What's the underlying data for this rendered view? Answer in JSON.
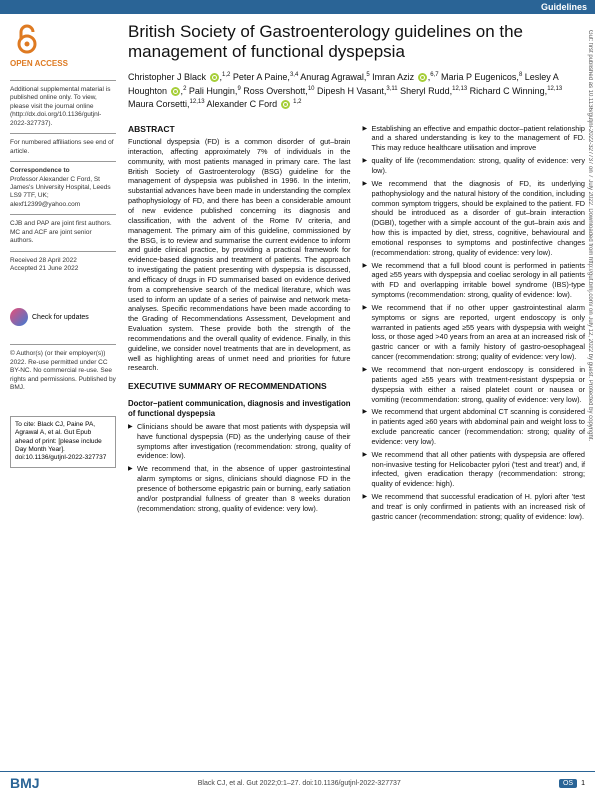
{
  "header": {
    "category": "Guidelines"
  },
  "title": "British Society of Gastroenterology guidelines on the management of functional dyspepsia",
  "authors_html": "Christopher J Black <orcid></orcid>,<sup>1,2</sup> Peter A Paine,<sup>3,4</sup> Anurag Agrawal,<sup>5</sup> Imran Aziz <orcid></orcid>,<sup>6,7</sup> Maria P Eugenicos,<sup>8</sup> Lesley A Houghton <orcid></orcid>,<sup>2</sup> Pali Hungin,<sup>9</sup> Ross Overshott,<sup>10</sup> Dipesh H Vasant,<sup>3,11</sup> Sheryl Rudd,<sup>12,13</sup> Richard C Winning,<sup>12,13</sup> Maura Corsetti,<sup>12,13</sup> Alexander C Ford <orcid></orcid> <sup>1,2</sup>",
  "sidebar": {
    "open_access": "OPEN ACCESS",
    "supplemental": "Additional supplemental material is published online only. To view, please visit the journal online (http://dx.doi.org/10.1136/gutjnl-2022-327737).",
    "affil_note": "For numbered affiliations see end of article.",
    "correspondence_label": "Correspondence to",
    "correspondence": "Professor Alexander C Ford, St James's University Hospital, Leeds LS9 7TF, UK; alexf12399@yahoo.com",
    "contrib": "CJB and PAP are joint first authors.\nMC and ACF are joint senior authors.",
    "dates": "Received 28 April 2022\nAccepted 21 June 2022",
    "check_updates": "Check for updates",
    "copyright": "© Author(s) (or their employer(s)) 2022. Re-use permitted under CC BY-NC. No commercial re-use. See rights and permissions. Published by BMJ.",
    "cite_label": "To cite:",
    "cite": "Black CJ, Paine PA, Agrawal A, et al. Gut Epub ahead of print: [please include Day Month Year]. doi:10.1136/gutjnl-2022-327737"
  },
  "abstract": {
    "head": "ABSTRACT",
    "body": "Functional dyspepsia (FD) is a common disorder of gut–brain interaction, affecting approximately 7% of individuals in the community, with most patients managed in primary care. The last British Society of Gastroenterology (BSG) guideline for the management of dyspepsia was published in 1996. In the interim, substantial advances have been made in understanding the complex pathophysiology of FD, and there has been a considerable amount of new evidence published concerning its diagnosis and classification, with the advent of the Rome IV criteria, and management. The primary aim of this guideline, commissioned by the BSG, is to review and summarise the current evidence to inform and guide clinical practice, by providing a practical framework for evidence-based diagnosis and treatment of patients. The approach to investigating the patient presenting with dyspepsia is discussed, and efficacy of drugs in FD summarised based on evidence derived from a comprehensive search of the medical literature, which was used to inform an update of a series of pairwise and network meta-analyses. Specific recommendations have been made according to the Grading of Recommendations Assessment, Development and Evaluation system. These provide both the strength of the recommendations and the overall quality of evidence. Finally, in this guideline, we consider novel treatments that are in development, as well as highlighting areas of unmet need and priorities for future research."
  },
  "exec": {
    "head": "EXECUTIVE SUMMARY OF RECOMMENDATIONS",
    "sub": "Doctor–patient communication, diagnosis and investigation of functional dyspepsia",
    "items": [
      "Clinicians should be aware that most patients with dyspepsia will have functional dyspepsia (FD) as the underlying cause of their symptoms after investigation (recommendation: strong, quality of evidence: low).",
      "We recommend that, in the absence of upper gastrointestinal alarm symptoms or signs, clinicians should diagnose FD in the presence of bothersome epigastric pain or burning, early satiation and/or postprandial fullness of greater than 8 weeks duration (recommendation: strong, quality of evidence: very low).",
      "Establishing an effective and empathic doctor–patient relationship and a shared understanding is key to the management of FD. This may reduce healthcare utilisation and improve",
      "quality of life (recommendation: strong, quality of evidence: very low).",
      "We recommend that the diagnosis of FD, its underlying pathophysiology and the natural history of the condition, including common symptom triggers, should be explained to the patient. FD should be introduced as a disorder of gut–brain interaction (DGBI), together with a simple account of the gut–brain axis and how this is impacted by diet, stress, cognitive, behavioural and emotional responses to symptoms and postinfective changes (recommendation: strong, quality of evidence: very low).",
      "We recommend that a full blood count is performed in patients aged ≥55 years with dyspepsia and coeliac serology in all patients with FD and overlapping irritable bowel syndrome (IBS)-type symptoms (recommendation: strong, quality of evidence: low).",
      "We recommend that if no other upper gastrointestinal alarm symptoms or signs are reported, urgent endoscopy is only warranted in patients aged ≥55 years with dyspepsia with weight loss, or those aged >40 years from an area at an increased risk of gastric cancer or with a family history of gastro-oesophageal cancer (recommendation: strong; quality of evidence: very low).",
      "We recommend that non-urgent endoscopy is considered in patients aged ≥55 years with treatment-resistant dyspepsia or dyspepsia with either a raised platelet count or nausea or vomiting (recommendation: strong, quality of evidence: very low).",
      "We recommend that urgent abdominal CT scanning is considered in patients aged ≥60 years with abdominal pain and weight loss to exclude pancreatic cancer (recommendation: strong; quality of evidence: very low).",
      "We recommend that all other patients with dyspepsia are offered non-invasive testing for Helicobacter pylori ('test and treat') and, if infected, given eradication therapy (recommendation: strong; quality of evidence: high).",
      "We recommend that successful eradication of H. pylori after 'test and treat' is only confirmed in patients with an increased risk of gastric cancer (recommendation: strong; quality of evidence: low)."
    ]
  },
  "footer": {
    "bmj": "BMJ",
    "citation": "Black CJ, et al. Gut 2022;0:1–27. doi:10.1136/gutjnl-2022-327737",
    "page": "1"
  },
  "side_strip": "Gut: first published as 10.1136/gutjnl-2022-327737 on 7 July 2022. Downloaded from http://gut.bmj.com/ on July 12, 2022 by guest. Protected by copyright."
}
